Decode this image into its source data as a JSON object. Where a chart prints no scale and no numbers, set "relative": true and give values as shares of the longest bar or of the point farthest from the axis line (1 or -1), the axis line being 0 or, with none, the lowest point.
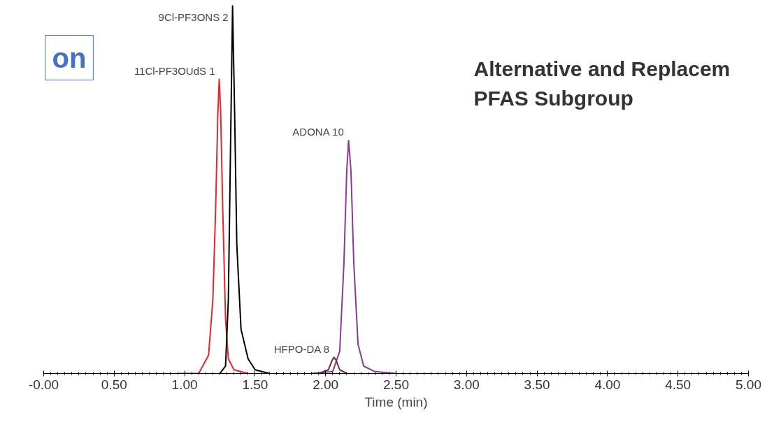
{
  "chart_data": {
    "type": "line",
    "relative": true,
    "xlabel": "Time (min)",
    "title": "Alternative and Replacem\nPFAS Subgroup",
    "xlim": [
      0,
      5
    ],
    "xticks": [
      {
        "value": 0,
        "label": "-0.00"
      },
      {
        "value": 0.5,
        "label": "0.50"
      },
      {
        "value": 1,
        "label": "1.00"
      },
      {
        "value": 1.5,
        "label": "1.50"
      },
      {
        "value": 2,
        "label": "2.00"
      },
      {
        "value": 2.5,
        "label": "2.50"
      },
      {
        "value": 3,
        "label": "3.00"
      },
      {
        "value": 3.5,
        "label": "3.50"
      },
      {
        "value": 4,
        "label": "4.00"
      },
      {
        "value": 4.5,
        "label": "4.50"
      },
      {
        "value": 5,
        "label": "5.00"
      }
    ],
    "grid": false,
    "marker": "none",
    "line_style": "solid",
    "series": [
      {
        "color": "#e8262a",
        "x": [
          0.95,
          1.1,
          1.17,
          1.2,
          1.22,
          1.235,
          1.245,
          1.255,
          1.27,
          1.29,
          1.31,
          1.35,
          1.45
        ],
        "values": [
          0,
          0,
          0.05,
          0.2,
          0.45,
          0.7,
          0.8,
          0.72,
          0.45,
          0.15,
          0.04,
          0.01,
          0
        ]
      },
      {
        "color": "#000000",
        "x": [
          1.25,
          1.29,
          1.31,
          1.325,
          1.34,
          1.355,
          1.37,
          1.4,
          1.45,
          1.5,
          1.6
        ],
        "values": [
          0,
          0.02,
          0.2,
          0.6,
          1.0,
          0.7,
          0.35,
          0.12,
          0.04,
          0.01,
          0
        ]
      },
      {
        "color": "#8b3a96",
        "x": [
          1.9,
          2.05,
          2.1,
          2.13,
          2.15,
          2.163,
          2.18,
          2.2,
          2.23,
          2.27,
          2.35,
          2.5
        ],
        "values": [
          0,
          0.005,
          0.06,
          0.3,
          0.55,
          0.634,
          0.55,
          0.3,
          0.08,
          0.02,
          0.005,
          0
        ]
      },
      {
        "color": "#6b2a4a",
        "x": [
          1.95,
          2.02,
          2.045,
          2.06,
          2.075,
          2.1,
          2.15
        ],
        "values": [
          0,
          0.01,
          0.035,
          0.044,
          0.035,
          0.01,
          0
        ]
      }
    ],
    "annotations": [
      {
        "text": "11Cl-PF3OUdS 1",
        "x": 1.245,
        "y": 0.8
      },
      {
        "text": "9Cl-PF3ONS 2",
        "x": 1.34,
        "y": 1.0
      },
      {
        "text": "ADONA 10",
        "x": 2.163,
        "y": 0.634
      },
      {
        "text": "HFPO-DA 8",
        "x": 2.06,
        "y": 0.044
      },
      "on"
    ]
  }
}
